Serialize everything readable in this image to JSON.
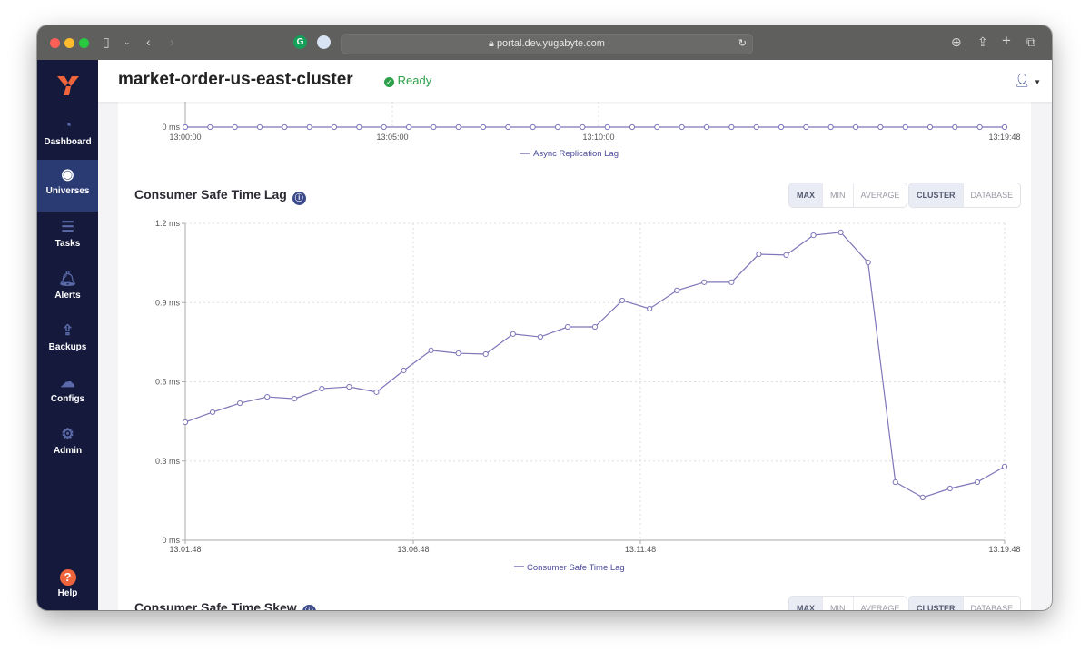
{
  "browser": {
    "url": "portal.dev.yugabyte.com"
  },
  "header": {
    "title": "market-order-us-east-cluster",
    "status": "Ready"
  },
  "sidebar": {
    "items": [
      {
        "label": "Dashboard",
        "icon": "dashboard-icon"
      },
      {
        "label": "Universes",
        "icon": "globe-icon",
        "active": true
      },
      {
        "label": "Tasks",
        "icon": "list-icon"
      },
      {
        "label": "Alerts",
        "icon": "bell-icon"
      },
      {
        "label": "Backups",
        "icon": "upload-icon"
      },
      {
        "label": "Configs",
        "icon": "cloud-upload-icon"
      },
      {
        "label": "Admin",
        "icon": "gear-icon"
      }
    ],
    "help": "Help"
  },
  "colors": {
    "series": "#7d76b8",
    "accent": "#f0643c",
    "sidebar": "#151a3d",
    "ready": "#2fa04a"
  },
  "controls": {
    "agg": [
      "MAX",
      "MIN",
      "AVERAGE"
    ],
    "scope": [
      "CLUSTER",
      "DATABASE"
    ],
    "agg_selected": "MAX",
    "scope_selected": "CLUSTER"
  },
  "chart_data": [
    {
      "type": "line",
      "title": "",
      "ylabel": "",
      "y_ticks": [
        "0 ms"
      ],
      "x_ticks": [
        "13:00:00",
        "13:05:00",
        "13:10:00",
        "13:19:48"
      ],
      "series": [
        {
          "name": "Async Replication Lag",
          "values": [
            0,
            0,
            0,
            0,
            0,
            0,
            0,
            0,
            0,
            0,
            0,
            0,
            0,
            0,
            0,
            0,
            0,
            0,
            0,
            0,
            0,
            0,
            0,
            0,
            0,
            0,
            0,
            0,
            0,
            0,
            0,
            0,
            0,
            0
          ]
        }
      ],
      "grid": true,
      "legend": "bottom"
    },
    {
      "type": "line",
      "title": "Consumer Safe Time Lag",
      "ylim": [
        0,
        1.2
      ],
      "y_ticks": [
        "0 ms",
        "0.3 ms",
        "0.6 ms",
        "0.9 ms",
        "1.2 ms"
      ],
      "x_ticks": [
        "13:01:48",
        "13:06:48",
        "13:11:48",
        "13:19:48"
      ],
      "series": [
        {
          "name": "Consumer Safe Time Lag",
          "values": [
            0.447,
            0.485,
            0.519,
            0.543,
            0.536,
            0.574,
            0.581,
            0.561,
            0.643,
            0.719,
            0.708,
            0.705,
            0.781,
            0.77,
            0.808,
            0.808,
            0.908,
            0.877,
            0.946,
            0.977,
            0.977,
            1.083,
            1.08,
            1.155,
            1.166,
            1.052,
            0.22,
            0.162,
            0.196,
            0.22,
            0.279
          ]
        }
      ],
      "grid": true,
      "legend": "bottom"
    }
  ],
  "next_chart": {
    "title": "Consumer Safe Time Skew"
  }
}
